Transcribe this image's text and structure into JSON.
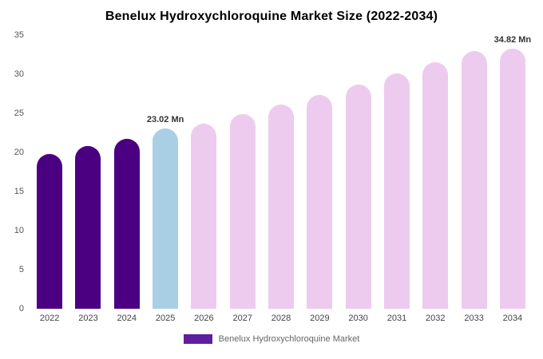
{
  "chart_data": {
    "type": "bar",
    "title": "Benelux Hydroxychloroquine Market Size (2022-2034)",
    "categories": [
      "2022",
      "2023",
      "2024",
      "2025",
      "2026",
      "2027",
      "2028",
      "2029",
      "2030",
      "2031",
      "2032",
      "2033",
      "2034"
    ],
    "values": [
      19.8,
      20.8,
      21.7,
      23.02,
      23.7,
      24.9,
      26.1,
      27.3,
      28.7,
      30.1,
      31.5,
      33.0,
      34.82
    ],
    "unit": "Mn",
    "ylim": [
      0,
      35
    ],
    "yticks": [
      0,
      5,
      10,
      15,
      20,
      25,
      30,
      35
    ],
    "grid": false,
    "annotations": [
      {
        "category": "2025",
        "text": "23.02 Mn"
      },
      {
        "category": "2034",
        "text": "34.82 Mn"
      }
    ],
    "bar_color_keys": [
      "historical",
      "historical",
      "historical",
      "highlight",
      "forecast",
      "forecast",
      "forecast",
      "forecast",
      "forecast",
      "forecast",
      "forecast",
      "forecast",
      "forecast"
    ],
    "palette": {
      "historical": "#4B0082",
      "highlight": "#a9cfe5",
      "forecast": "#edcbee"
    },
    "legend_position": "bottom",
    "legend": [
      {
        "label": "Benelux Hydroxychloroquine Market",
        "color": "#5e1e9e"
      }
    ]
  }
}
